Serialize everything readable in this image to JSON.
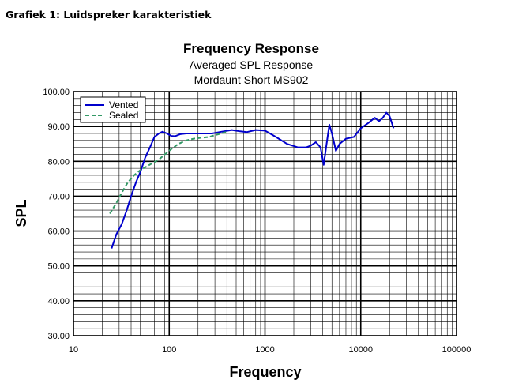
{
  "caption": "Grafiek 1: Luidspreker karakteristiek",
  "chart_data": {
    "type": "line",
    "title": "Frequency Response",
    "subtitle": [
      "Averaged SPL Response",
      "Mordaunt Short MS902"
    ],
    "xlabel": "Frequency",
    "ylabel": "SPL",
    "xscale": "log",
    "xlim": [
      10,
      100000
    ],
    "ylim": [
      30,
      100
    ],
    "x_ticks": [
      10,
      100,
      1000,
      10000,
      100000
    ],
    "x_tick_labels": [
      "10",
      "100",
      "1000",
      "10000",
      "100000"
    ],
    "y_ticks": [
      30,
      40,
      50,
      60,
      70,
      80,
      90,
      100
    ],
    "y_tick_labels": [
      "30.00",
      "40.00",
      "50.00",
      "60.00",
      "70.00",
      "80.00",
      "90.00",
      "100.00"
    ],
    "grid": true,
    "legend_position": "top-left",
    "series": [
      {
        "name": "Vented",
        "color": "#0000cc",
        "style": "solid",
        "x": [
          25,
          28,
          32,
          36,
          40,
          45,
          50,
          56,
          63,
          70,
          78,
          85,
          95,
          105,
          115,
          130,
          150,
          180,
          220,
          280,
          350,
          450,
          550,
          650,
          800,
          1000,
          1300,
          1700,
          2200,
          2700,
          3000,
          3400,
          3800,
          4100,
          4400,
          4700,
          5000,
          5500,
          6000,
          7000,
          8500,
          10000,
          12000,
          14000,
          15500,
          17000,
          18500,
          20000,
          22000
        ],
        "y": [
          55,
          59,
          62,
          66,
          70,
          74,
          77,
          81,
          84,
          87,
          88,
          88.5,
          88,
          87.3,
          87.2,
          87.8,
          88,
          88,
          88,
          88,
          88.5,
          89,
          88.6,
          88.4,
          89,
          88.8,
          87,
          85,
          84,
          84,
          84.5,
          85.5,
          84,
          79,
          85,
          90.5,
          88,
          83,
          85,
          86.5,
          87,
          89.5,
          91,
          92.5,
          91.5,
          92.5,
          94,
          93,
          89.5
        ]
      },
      {
        "name": "Sealed",
        "color": "#339966",
        "style": "dashed",
        "x": [
          24,
          28,
          32,
          37,
          43,
          50,
          58,
          67,
          78,
          90,
          105,
          125,
          150,
          180,
          220,
          260,
          300,
          350,
          400
        ],
        "y": [
          65,
          68,
          71,
          74,
          76,
          77.5,
          78.5,
          79.5,
          80.5,
          82,
          83.5,
          85,
          86,
          86.5,
          86.8,
          87,
          87.5,
          88,
          88.5
        ]
      }
    ]
  }
}
